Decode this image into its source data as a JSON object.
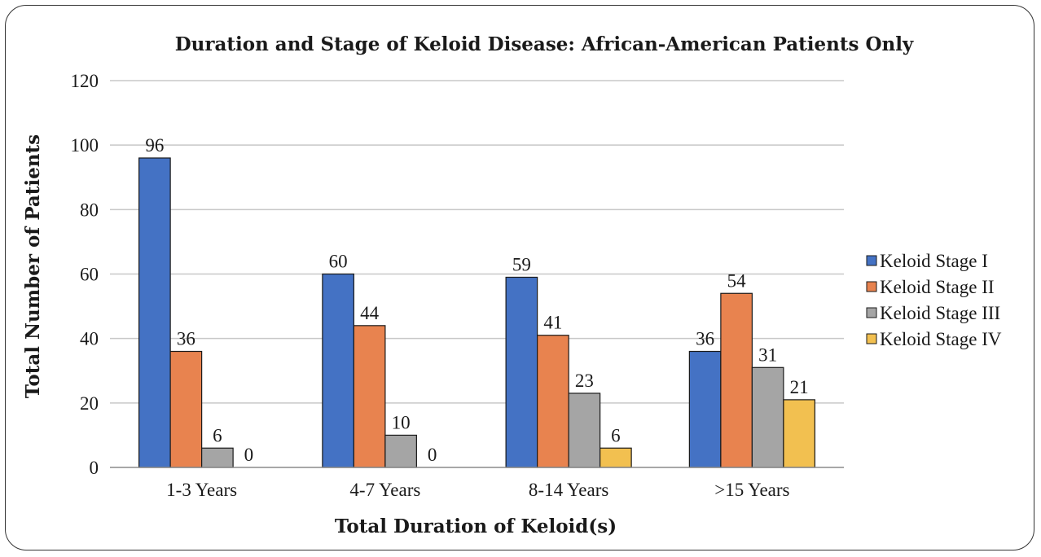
{
  "chart_data": {
    "type": "bar",
    "title": "Duration and Stage of Keloid Disease: African-American Patients Only",
    "xlabel": "Total Duration of Keloid(s)",
    "ylabel": "Total Number of Patients",
    "categories": [
      "1-3 Years",
      "4-7 Years",
      "8-14 Years",
      ">15 Years"
    ],
    "series": [
      {
        "name": "Keloid Stage I",
        "color": "#4472c4",
        "values": [
          96,
          60,
          59,
          36
        ]
      },
      {
        "name": "Keloid Stage II",
        "color": "#e8834f",
        "values": [
          36,
          44,
          41,
          54
        ]
      },
      {
        "name": "Keloid Stage III",
        "color": "#a5a5a5",
        "values": [
          6,
          10,
          23,
          31
        ]
      },
      {
        "name": "Keloid Stage IV",
        "color": "#f2c050",
        "values": [
          0,
          0,
          6,
          21
        ]
      }
    ],
    "ylim": [
      0,
      120
    ],
    "yticks": [
      0,
      20,
      40,
      60,
      80,
      100,
      120
    ],
    "grid": true,
    "legend": "right"
  }
}
